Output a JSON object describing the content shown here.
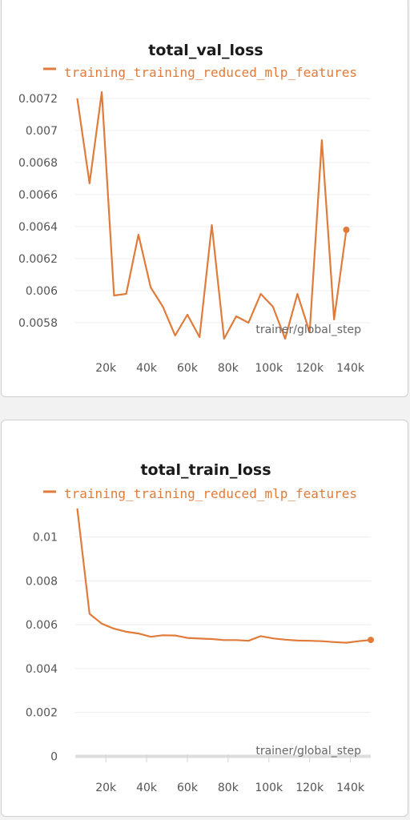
{
  "chart_data": [
    {
      "type": "line",
      "title": "total_val_loss",
      "xlabel": "trainer/global_step",
      "ylabel": "",
      "xlim": [
        5000,
        150000
      ],
      "ylim": [
        0.00567,
        0.00725
      ],
      "xticks": [
        20000,
        40000,
        60000,
        80000,
        100000,
        120000,
        140000
      ],
      "xtick_labels": [
        "20k",
        "40k",
        "60k",
        "80k",
        "100k",
        "120k",
        "140k"
      ],
      "yticks": [
        0.0058,
        0.006,
        0.0062,
        0.0064,
        0.0066,
        0.0068,
        0.007,
        0.0072
      ],
      "ytick_labels": [
        "0.0058",
        "0.006",
        "0.0062",
        "0.0064",
        "0.0066",
        "0.0068",
        "0.007",
        "0.0072"
      ],
      "grid": true,
      "legend_position": "top",
      "series": [
        {
          "name": "training_training_reduced_mlp_features",
          "color": "#e07b39",
          "x": [
            6000,
            12000,
            18000,
            24000,
            30000,
            36000,
            42000,
            48000,
            54000,
            60000,
            66000,
            72000,
            78000,
            84000,
            90000,
            96000,
            102000,
            108000,
            114000,
            120000,
            126000,
            132000,
            138000,
            144000,
            150000
          ],
          "values": [
            0.0072,
            0.00667,
            0.00724,
            0.00597,
            0.00598,
            0.00635,
            0.00602,
            0.0059,
            0.00572,
            0.00585,
            0.00571,
            0.00641,
            0.0057,
            0.00584,
            0.0058,
            0.00598,
            0.0059,
            0.0057,
            0.00598,
            0.00574,
            0.00694,
            0.00582,
            0.00638,
            null,
            null
          ]
        }
      ]
    },
    {
      "type": "line",
      "title": "total_train_loss",
      "xlabel": "trainer/global_step",
      "ylabel": "",
      "xlim": [
        5000,
        150000
      ],
      "ylim": [
        -0.0002,
        0.0113
      ],
      "xticks": [
        20000,
        40000,
        60000,
        80000,
        100000,
        120000,
        140000
      ],
      "xtick_labels": [
        "20k",
        "40k",
        "60k",
        "80k",
        "100k",
        "120k",
        "140k"
      ],
      "yticks": [
        0,
        0.002,
        0.004,
        0.006,
        0.008,
        0.01
      ],
      "ytick_labels": [
        "0",
        "0.002",
        "0.004",
        "0.006",
        "0.008",
        "0.01"
      ],
      "grid": true,
      "legend_position": "top",
      "series": [
        {
          "name": "training_training_reduced_mlp_features",
          "color": "#e07b39",
          "x": [
            6000,
            12000,
            18000,
            24000,
            30000,
            36000,
            42000,
            48000,
            54000,
            60000,
            66000,
            72000,
            78000,
            84000,
            90000,
            96000,
            102000,
            108000,
            114000,
            120000,
            126000,
            132000,
            138000,
            144000,
            150000
          ],
          "values": [
            0.0113,
            0.0065,
            0.00605,
            0.00582,
            0.00568,
            0.0056,
            0.00545,
            0.00552,
            0.00551,
            0.0054,
            0.00537,
            0.00535,
            0.0053,
            0.0053,
            0.00527,
            0.00548,
            0.00538,
            0.00532,
            0.00528,
            0.00527,
            0.00525,
            0.00521,
            0.00518,
            0.00525,
            0.00531
          ]
        }
      ]
    }
  ]
}
